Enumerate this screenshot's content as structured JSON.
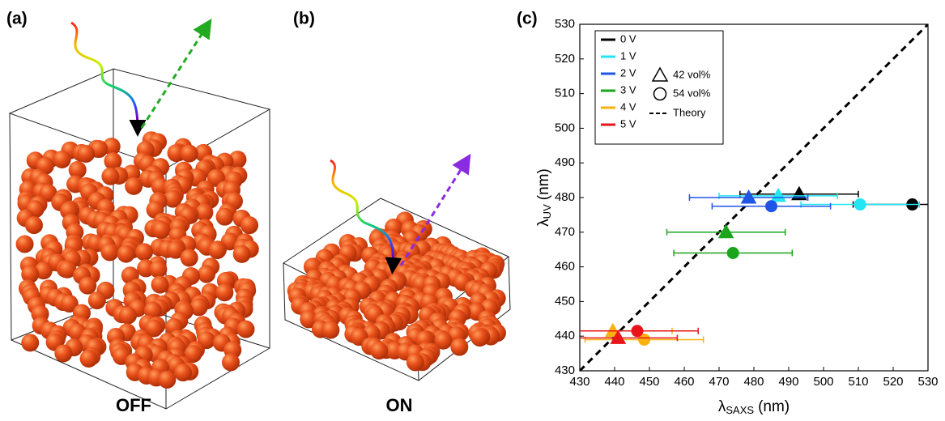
{
  "panels": [
    {
      "label": "(a)",
      "caption": "OFF"
    },
    {
      "label": "(b)",
      "caption": "ON"
    }
  ],
  "chart_data": {
    "type": "scatter",
    "panel_label": "(c)",
    "xlabel": {
      "symbol": "λ",
      "subscript": "SAXS",
      "unit": "(nm)"
    },
    "ylabel": {
      "symbol": "λ",
      "subscript": "UV",
      "unit": "(nm)"
    },
    "xlim": [
      430,
      530
    ],
    "ylim": [
      430,
      530
    ],
    "xticks": [
      430,
      440,
      450,
      460,
      470,
      480,
      490,
      500,
      510,
      520,
      530
    ],
    "yticks": [
      430,
      440,
      450,
      460,
      470,
      480,
      490,
      500,
      510,
      520,
      530
    ],
    "marker_legend": [
      {
        "name": "42 vol%",
        "marker": "triangle"
      },
      {
        "name": "54 vol%",
        "marker": "circle"
      }
    ],
    "theory": {
      "name": "Theory",
      "color": "#000000"
    },
    "series": [
      {
        "name": "0 V",
        "color": "#000000",
        "x": [
          493,
          525.5
        ],
        "y": [
          481,
          478
        ],
        "xerr": [
          17,
          17
        ]
      },
      {
        "name": "1 V",
        "color": "#22e6f5",
        "x": [
          487,
          510.5
        ],
        "y": [
          480.5,
          478
        ],
        "xerr": [
          17,
          17
        ]
      },
      {
        "name": "2 V",
        "color": "#1f55e6",
        "x": [
          478.5,
          485
        ],
        "y": [
          480,
          477.5
        ],
        "xerr": [
          17,
          17
        ]
      },
      {
        "name": "3 V",
        "color": "#1aa51a",
        "x": [
          472,
          474
        ],
        "y": [
          470,
          464
        ],
        "xerr": [
          17,
          17
        ]
      },
      {
        "name": "4 V",
        "color": "#f7b20e",
        "x": [
          439.5,
          448.5
        ],
        "y": [
          441.5,
          439
        ],
        "xerr": [
          17,
          17
        ]
      },
      {
        "name": "5 V",
        "color": "#e8141a",
        "x": [
          441,
          446.5
        ],
        "y": [
          439.5,
          441.5
        ],
        "xerr": [
          17,
          17.5
        ]
      }
    ]
  }
}
